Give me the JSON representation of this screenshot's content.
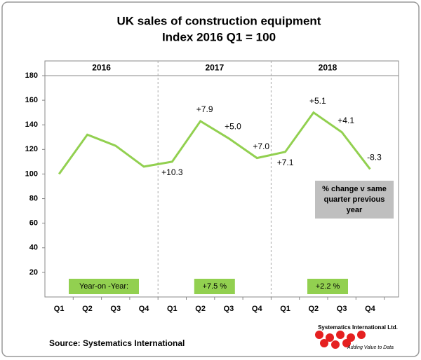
{
  "chart_data": {
    "type": "line",
    "title": "UK sales of construction equipment",
    "subtitle": "Index 2016 Q1 = 100",
    "years": [
      "2016",
      "2017",
      "2018"
    ],
    "categories": [
      "Q1",
      "Q2",
      "Q3",
      "Q4",
      "Q1",
      "Q2",
      "Q3",
      "Q4",
      "Q1",
      "Q2",
      "Q3",
      "Q4"
    ],
    "values": [
      100,
      132,
      123,
      106,
      110,
      143,
      129,
      113,
      118,
      150,
      134,
      104
    ],
    "color": "#92d050",
    "changes": [
      null,
      null,
      null,
      null,
      10.3,
      7.9,
      5.0,
      7.0,
      7.1,
      5.1,
      4.1,
      -8.3
    ],
    "value_labels": [
      null,
      null,
      null,
      null,
      "+10.3",
      "+7.9",
      "+5.0",
      "+7.0",
      "+7.1",
      "+5.1",
      "+4.1",
      "-8.3"
    ],
    "negative_color": "#e00000",
    "ylim": [
      0,
      180
    ],
    "yticks": [
      20,
      40,
      60,
      80,
      100,
      120,
      140,
      160,
      180
    ],
    "yoy_boxes": [
      "Year-on -Year:",
      "+7.5 %",
      "+2.2 %"
    ],
    "yoy_values": [
      null,
      7.5,
      2.2
    ],
    "note": "% change v same quarter previous year",
    "source": "Source: Systematics International",
    "logo": {
      "name": "Systematics International Ltd.",
      "tagline": "Adding Value to Data"
    }
  }
}
